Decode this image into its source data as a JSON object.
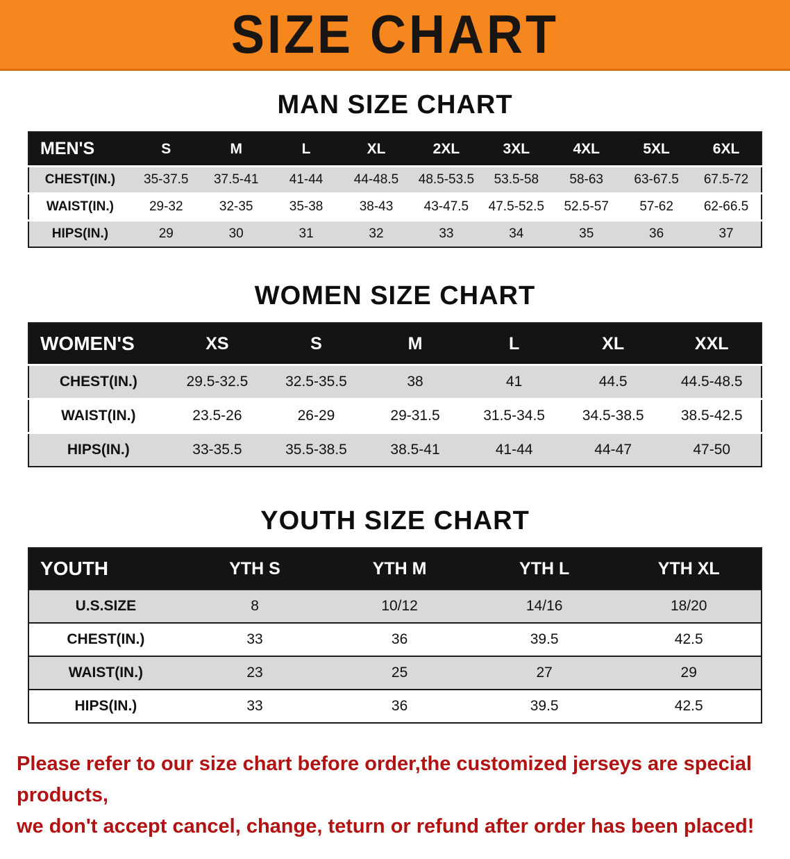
{
  "banner": {
    "title": "SIZE CHART"
  },
  "colors": {
    "banner_bg": "#f6871f",
    "table_header_bg": "#141414",
    "row_shade": "#d9d9d9",
    "footer_text": "#b11212"
  },
  "sections": [
    {
      "id": "men",
      "heading": "MAN SIZE CHART",
      "table": {
        "header": [
          "MEN'S",
          "S",
          "M",
          "L",
          "XL",
          "2XL",
          "3XL",
          "4XL",
          "5XL",
          "6XL"
        ],
        "rows": [
          [
            "CHEST(IN.)",
            "35-37.5",
            "37.5-41",
            "41-44",
            "44-48.5",
            "48.5-53.5",
            "53.5-58",
            "58-63",
            "63-67.5",
            "67.5-72"
          ],
          [
            "WAIST(IN.)",
            "29-32",
            "32-35",
            "35-38",
            "38-43",
            "43-47.5",
            "47.5-52.5",
            "52.5-57",
            "57-62",
            "62-66.5"
          ],
          [
            "HIPS(IN.)",
            "29",
            "30",
            "31",
            "32",
            "33",
            "34",
            "35",
            "36",
            "37"
          ]
        ]
      }
    },
    {
      "id": "women",
      "heading": "WOMEN SIZE CHART",
      "table": {
        "header": [
          "WOMEN'S",
          "XS",
          "S",
          "M",
          "L",
          "XL",
          "XXL"
        ],
        "rows": [
          [
            "CHEST(IN.)",
            "29.5-32.5",
            "32.5-35.5",
            "38",
            "41",
            "44.5",
            "44.5-48.5"
          ],
          [
            "WAIST(IN.)",
            "23.5-26",
            "26-29",
            "29-31.5",
            "31.5-34.5",
            "34.5-38.5",
            "38.5-42.5"
          ],
          [
            "HIPS(IN.)",
            "33-35.5",
            "35.5-38.5",
            "38.5-41",
            "41-44",
            "44-47",
            "47-50"
          ]
        ]
      }
    },
    {
      "id": "youth",
      "heading": "YOUTH SIZE CHART",
      "table": {
        "header": [
          "YOUTH",
          "YTH S",
          "YTH M",
          "YTH L",
          "YTH XL"
        ],
        "rows": [
          [
            "U.S.SIZE",
            "8",
            "10/12",
            "14/16",
            "18/20"
          ],
          [
            "CHEST(IN.)",
            "33",
            "36",
            "39.5",
            "42.5"
          ],
          [
            "WAIST(IN.)",
            "23",
            "25",
            "27",
            "29"
          ],
          [
            "HIPS(IN.)",
            "33",
            "36",
            "39.5",
            "42.5"
          ]
        ]
      }
    }
  ],
  "footer": {
    "lines": [
      "Please refer to our size chart before order,the customized jerseys are special products,",
      "we don't accept cancel, change, teturn or refund after order has been placed!"
    ]
  }
}
